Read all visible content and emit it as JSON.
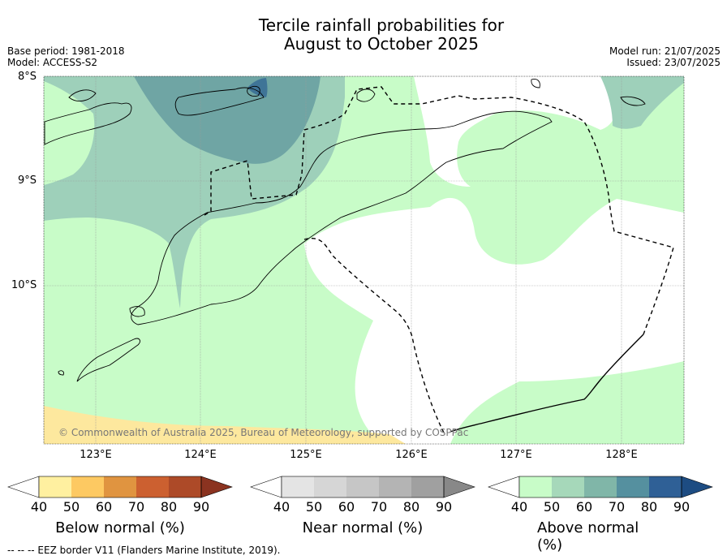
{
  "title_line1": "Tercile rainfall probabilities for",
  "title_line2": "August to October 2025",
  "meta_left": {
    "base_period": "Base period: 1981-2018",
    "model": "Model: ACCESS-S2"
  },
  "meta_right": {
    "model_run": "Model run: 21/07/2025",
    "issued": "Issued: 23/07/2025"
  },
  "map": {
    "lat_labels": [
      "8°S",
      "9°S",
      "10°S"
    ],
    "lon_labels": [
      "123°E",
      "124°E",
      "125°E",
      "126°E",
      "127°E",
      "128°E"
    ],
    "copyright": "© Commonwealth of Australia 2025, Bureau of Meteorology, supported by COSPPac"
  },
  "legends": [
    {
      "label": "Below normal (%)",
      "ticks": [
        "40",
        "50",
        "60",
        "70",
        "80",
        "90"
      ],
      "colors": [
        "#ffffff",
        "#fff0a0",
        "#fdc962",
        "#e09440",
        "#cc6030",
        "#ad4a28",
        "#8b3320"
      ]
    },
    {
      "label": "Near normal (%)",
      "ticks": [
        "40",
        "50",
        "60",
        "70",
        "80",
        "90"
      ],
      "colors": [
        "#ffffff",
        "#e4e4e4",
        "#d6d6d6",
        "#c6c6c6",
        "#b4b4b4",
        "#a0a0a0",
        "#888888"
      ]
    },
    {
      "label": "Above normal (%)",
      "ticks": [
        "40",
        "50",
        "60",
        "70",
        "80",
        "90"
      ],
      "colors": [
        "#ffffff",
        "#c8fcc8",
        "#a6d8ba",
        "#80b6a8",
        "#55909f",
        "#2f6096",
        "#1d4c82"
      ]
    }
  ],
  "footnote": "--  --  -- EEZ border V11 (Flanders Marine Institute, 2019)."
}
